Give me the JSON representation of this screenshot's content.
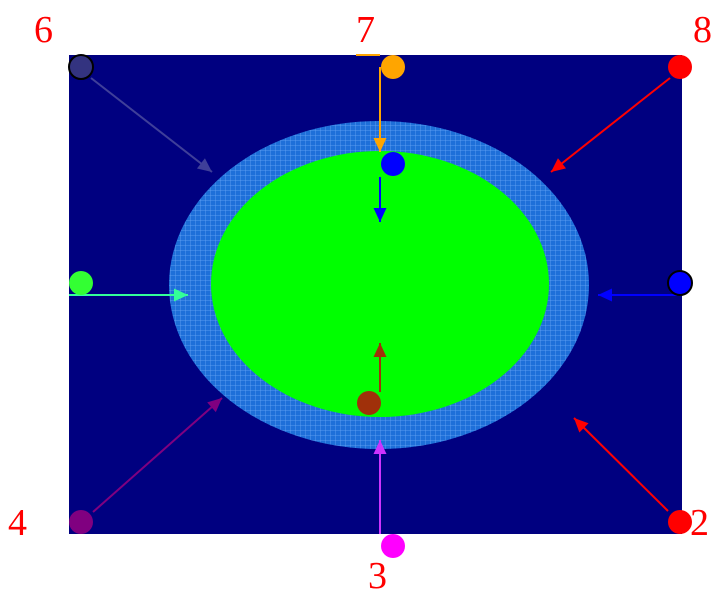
{
  "diagram": {
    "colors": {
      "background": "#000080",
      "outer_ring": "#1e6fd9",
      "ring_grid": "#7fb8ff",
      "inner_ellipse": "#00ff00",
      "labels": "#ff0000"
    },
    "labels": {
      "six": "6",
      "seven": "7",
      "eight": "8",
      "four": "4",
      "two": "2",
      "three": "3"
    },
    "markers": [
      {
        "name": "marker-top-left",
        "color": "#333380"
      },
      {
        "name": "marker-top-middle",
        "color": "#ffa500"
      },
      {
        "name": "marker-top-right",
        "color": "#ff0000"
      },
      {
        "name": "marker-left",
        "color": "#33ff33"
      },
      {
        "name": "marker-right",
        "color": "#0000ff"
      },
      {
        "name": "marker-bottom-left",
        "color": "#800080"
      },
      {
        "name": "marker-bottom-middle",
        "color": "#ff00ff"
      },
      {
        "name": "marker-bottom-right",
        "color": "#ff0000"
      },
      {
        "name": "marker-inner-top",
        "color": "#0000ff"
      },
      {
        "name": "marker-inner-bottom",
        "color": "#a0300a"
      }
    ],
    "arrows": [
      {
        "name": "arrow-from-top-left",
        "color": "#3f3f99"
      },
      {
        "name": "arrow-from-top-middle",
        "color": "#ffa500"
      },
      {
        "name": "arrow-from-top-right",
        "color": "#ff0000"
      },
      {
        "name": "arrow-from-left",
        "color": "#33ff99"
      },
      {
        "name": "arrow-from-right",
        "color": "#0000ff"
      },
      {
        "name": "arrow-from-bottom-left",
        "color": "#800080"
      },
      {
        "name": "arrow-from-bottom-middle",
        "color": "#cc33ff"
      },
      {
        "name": "arrow-from-bottom-right",
        "color": "#ff0000"
      },
      {
        "name": "arrow-inner-down",
        "color": "#0000ff"
      },
      {
        "name": "arrow-inner-up",
        "color": "#a0300a"
      }
    ]
  }
}
